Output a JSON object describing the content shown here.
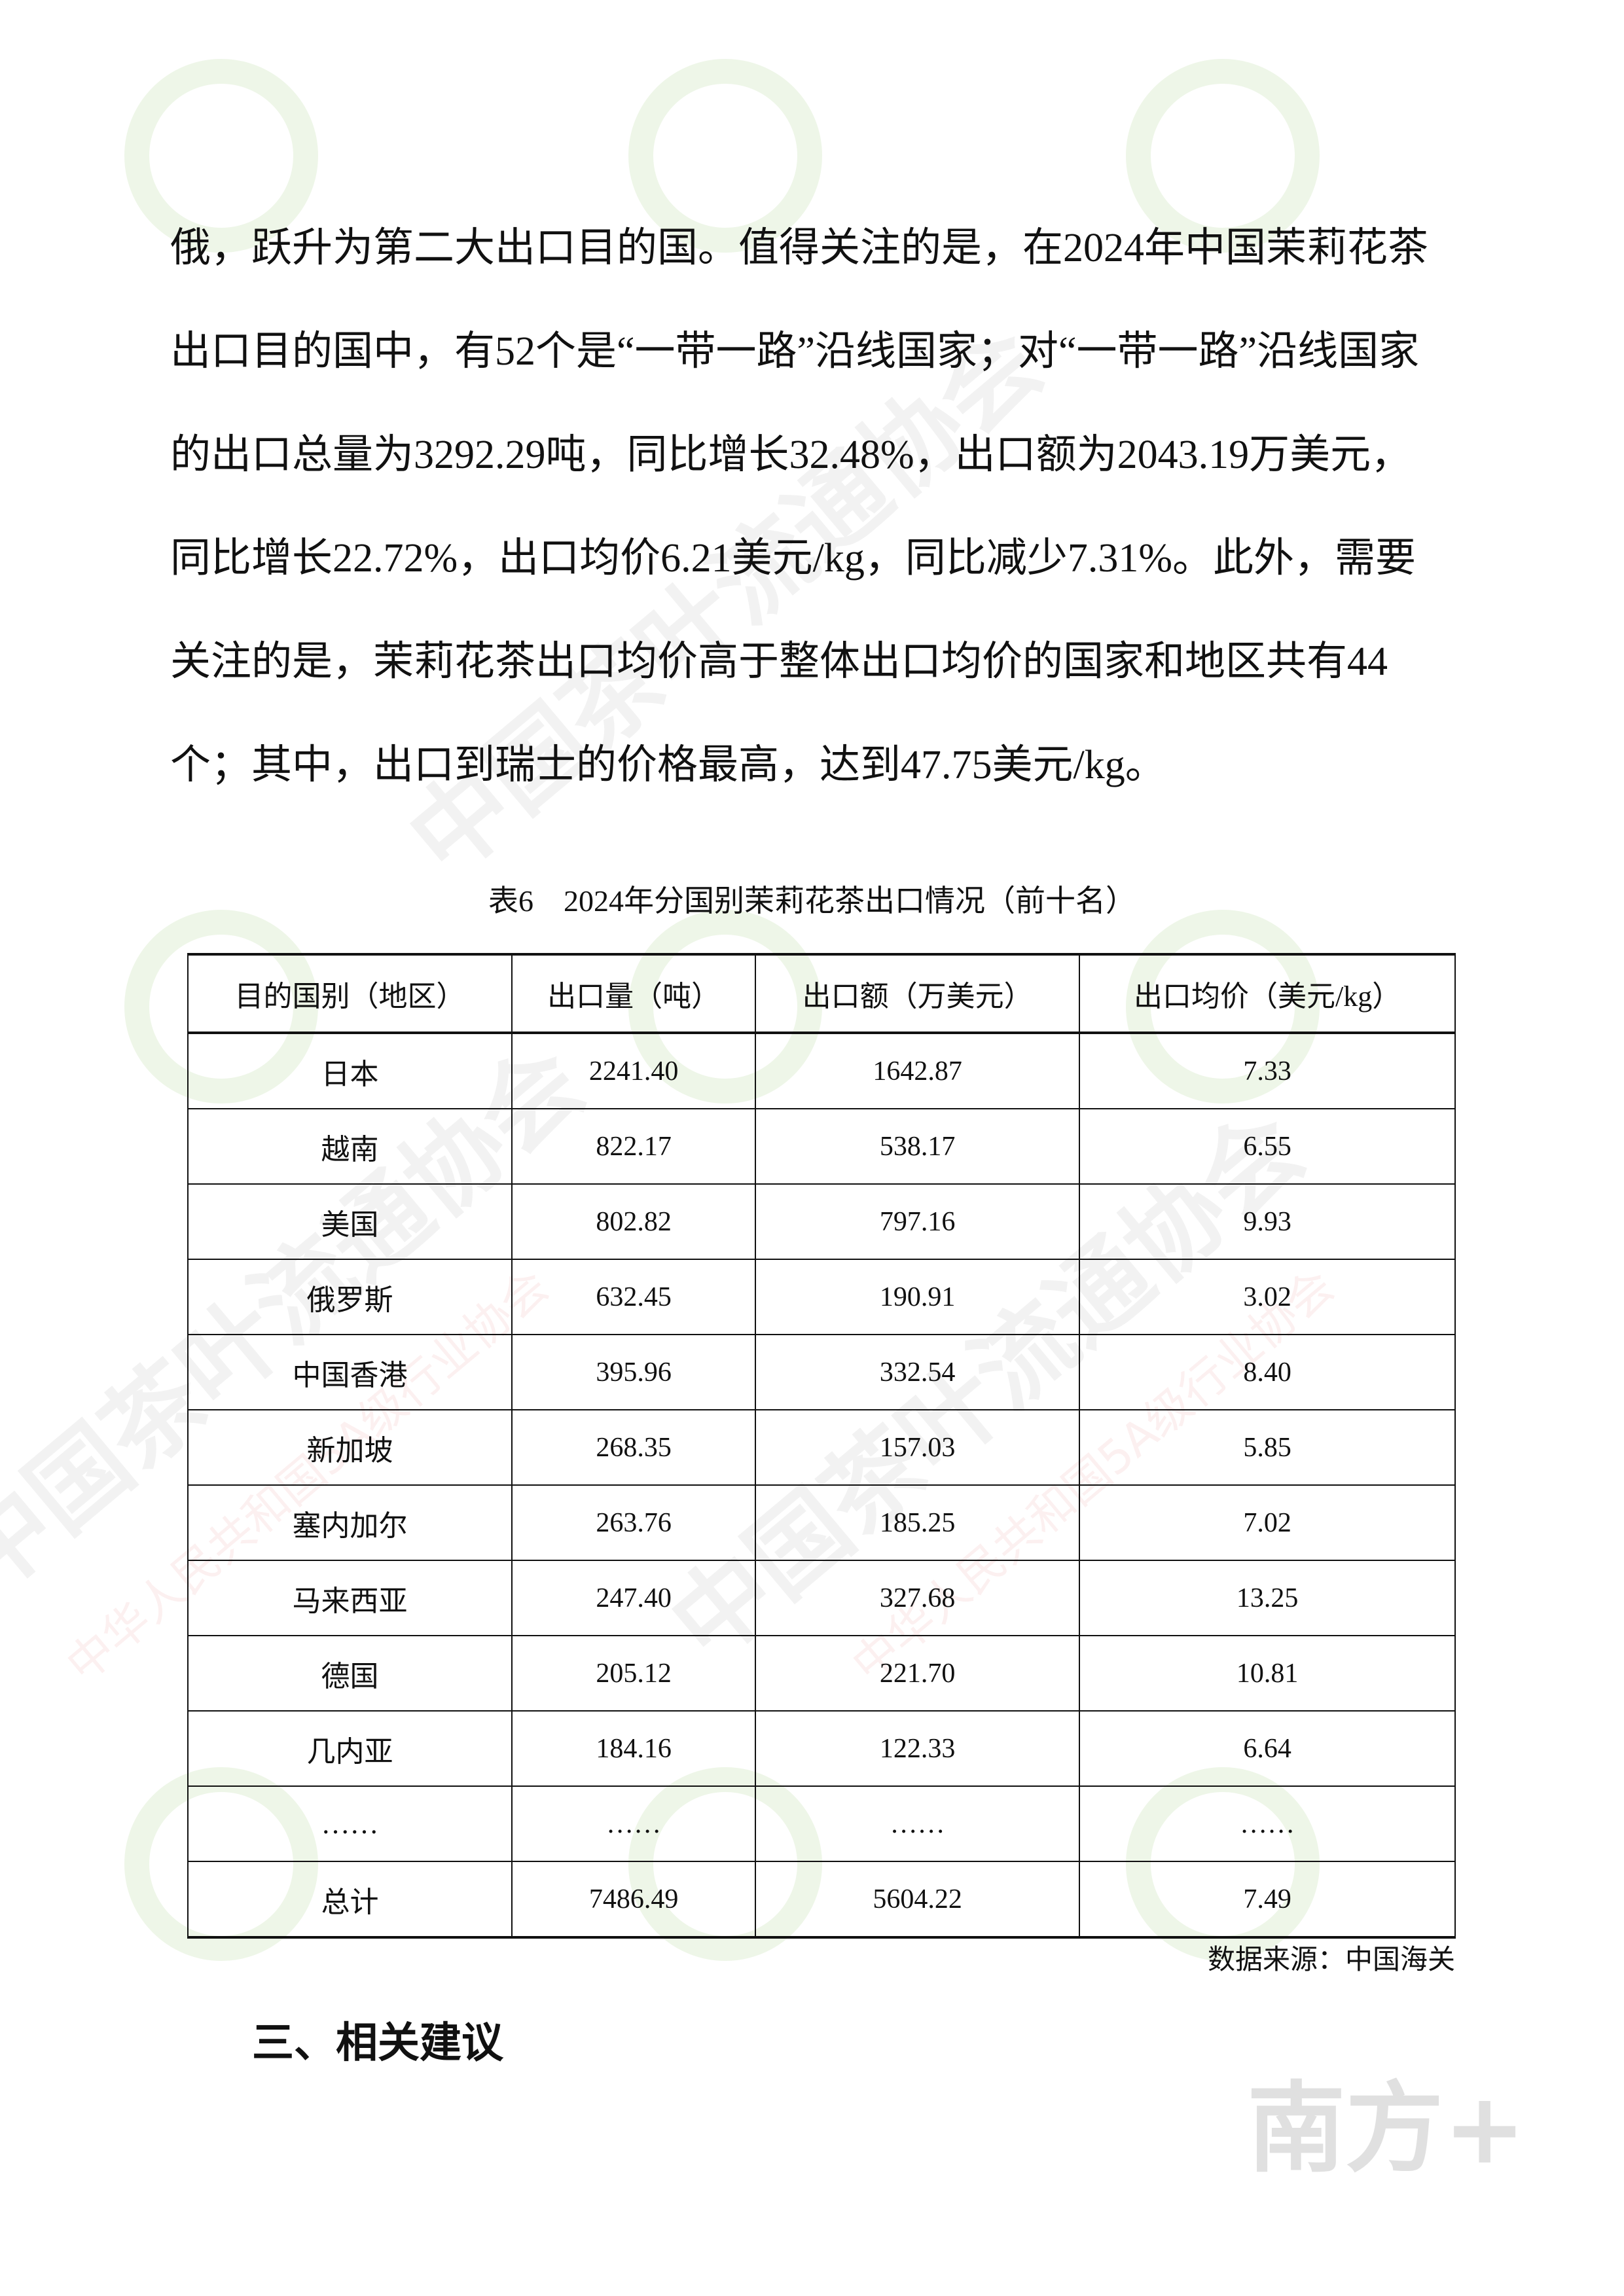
{
  "paragraph": {
    "lines": [
      "俄，跃升为第二大出口目的国。值得关注的是，在2024年中国茉莉花茶",
      "出口目的国中，有52个是“一带一路”沿线国家；对“一带一路”沿线国家",
      "的出口总量为3292.29吨，同比增长32.48%，出口额为2043.19万美元，",
      "同比增长22.72%，出口均价6.21美元/kg，同比减少7.31%。此外，需要",
      "关注的是，茉莉花茶出口均价高于整体出口均价的国家和地区共有44",
      "个；其中，出口到瑞士的价格最高，达到47.75美元/kg。"
    ]
  },
  "table": {
    "caption": "表6　2024年分国别茉莉花茶出口情况（前十名）",
    "headers": [
      "目的国别（地区）",
      "出口量（吨）",
      "出口额（万美元）",
      "出口均价（美元/kg）"
    ],
    "rows": [
      [
        "日本",
        "2241.40",
        "1642.87",
        "7.33"
      ],
      [
        "越南",
        "822.17",
        "538.17",
        "6.55"
      ],
      [
        "美国",
        "802.82",
        "797.16",
        "9.93"
      ],
      [
        "俄罗斯",
        "632.45",
        "190.91",
        "3.02"
      ],
      [
        "中国香港",
        "395.96",
        "332.54",
        "8.40"
      ],
      [
        "新加坡",
        "268.35",
        "157.03",
        "5.85"
      ],
      [
        "塞内加尔",
        "263.76",
        "185.25",
        "7.02"
      ],
      [
        "马来西亚",
        "247.40",
        "327.68",
        "13.25"
      ],
      [
        "德国",
        "205.12",
        "221.70",
        "10.81"
      ],
      [
        "几内亚",
        "184.16",
        "122.33",
        "6.64"
      ],
      [
        "……",
        "……",
        "……",
        "……"
      ],
      [
        "总计",
        "7486.49",
        "5604.22",
        "7.49"
      ]
    ],
    "source": "数据来源：中国海关"
  },
  "section_heading": "三、相关建议",
  "watermark": {
    "text": "中国茶叶流通协会",
    "subtext": "中华人民共和国5A级行业协会",
    "logo": "南方+"
  }
}
